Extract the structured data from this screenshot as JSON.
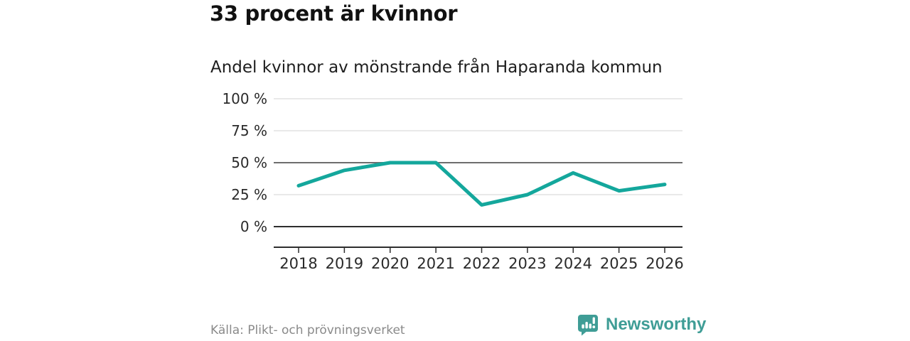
{
  "header": {
    "title": "33 procent är kvinnor",
    "subtitle": "Andel kvinnor av mönstrande från Haparanda kommun"
  },
  "chart_data": {
    "type": "line",
    "title": "33 procent är kvinnor",
    "subtitle": "Andel kvinnor av mönstrande från Haparanda kommun",
    "x": [
      "2018",
      "2019",
      "2020",
      "2021",
      "2022",
      "2023",
      "2024",
      "2025",
      "2026"
    ],
    "series": [
      {
        "name": "Andel kvinnor av mönstrande",
        "values": [
          32,
          44,
          50,
          50,
          17,
          25,
          42,
          28,
          33
        ]
      }
    ],
    "unit": "%",
    "xlabel": "",
    "ylabel": "",
    "ylim": [
      0,
      100
    ],
    "yticks": [
      0,
      25,
      50,
      75,
      100
    ],
    "ytick_labels": [
      "0 %",
      "25 %",
      "50 %",
      "75 %",
      "100 %"
    ],
    "grid": true,
    "emphasized_gridlines": [
      0,
      50
    ],
    "legend_position": "none",
    "colors": {
      "line": "#14a79c",
      "grid": "#dcdcdc",
      "grid_emphasis": "#6e6e6e",
      "axis": "#2e2e2e",
      "tick_text": "#2a2a2a"
    }
  },
  "footer": {
    "source": "Källa: Plikt- och prövningsverket",
    "brand": "Newsworthy",
    "brand_color": "#3f9d96"
  }
}
